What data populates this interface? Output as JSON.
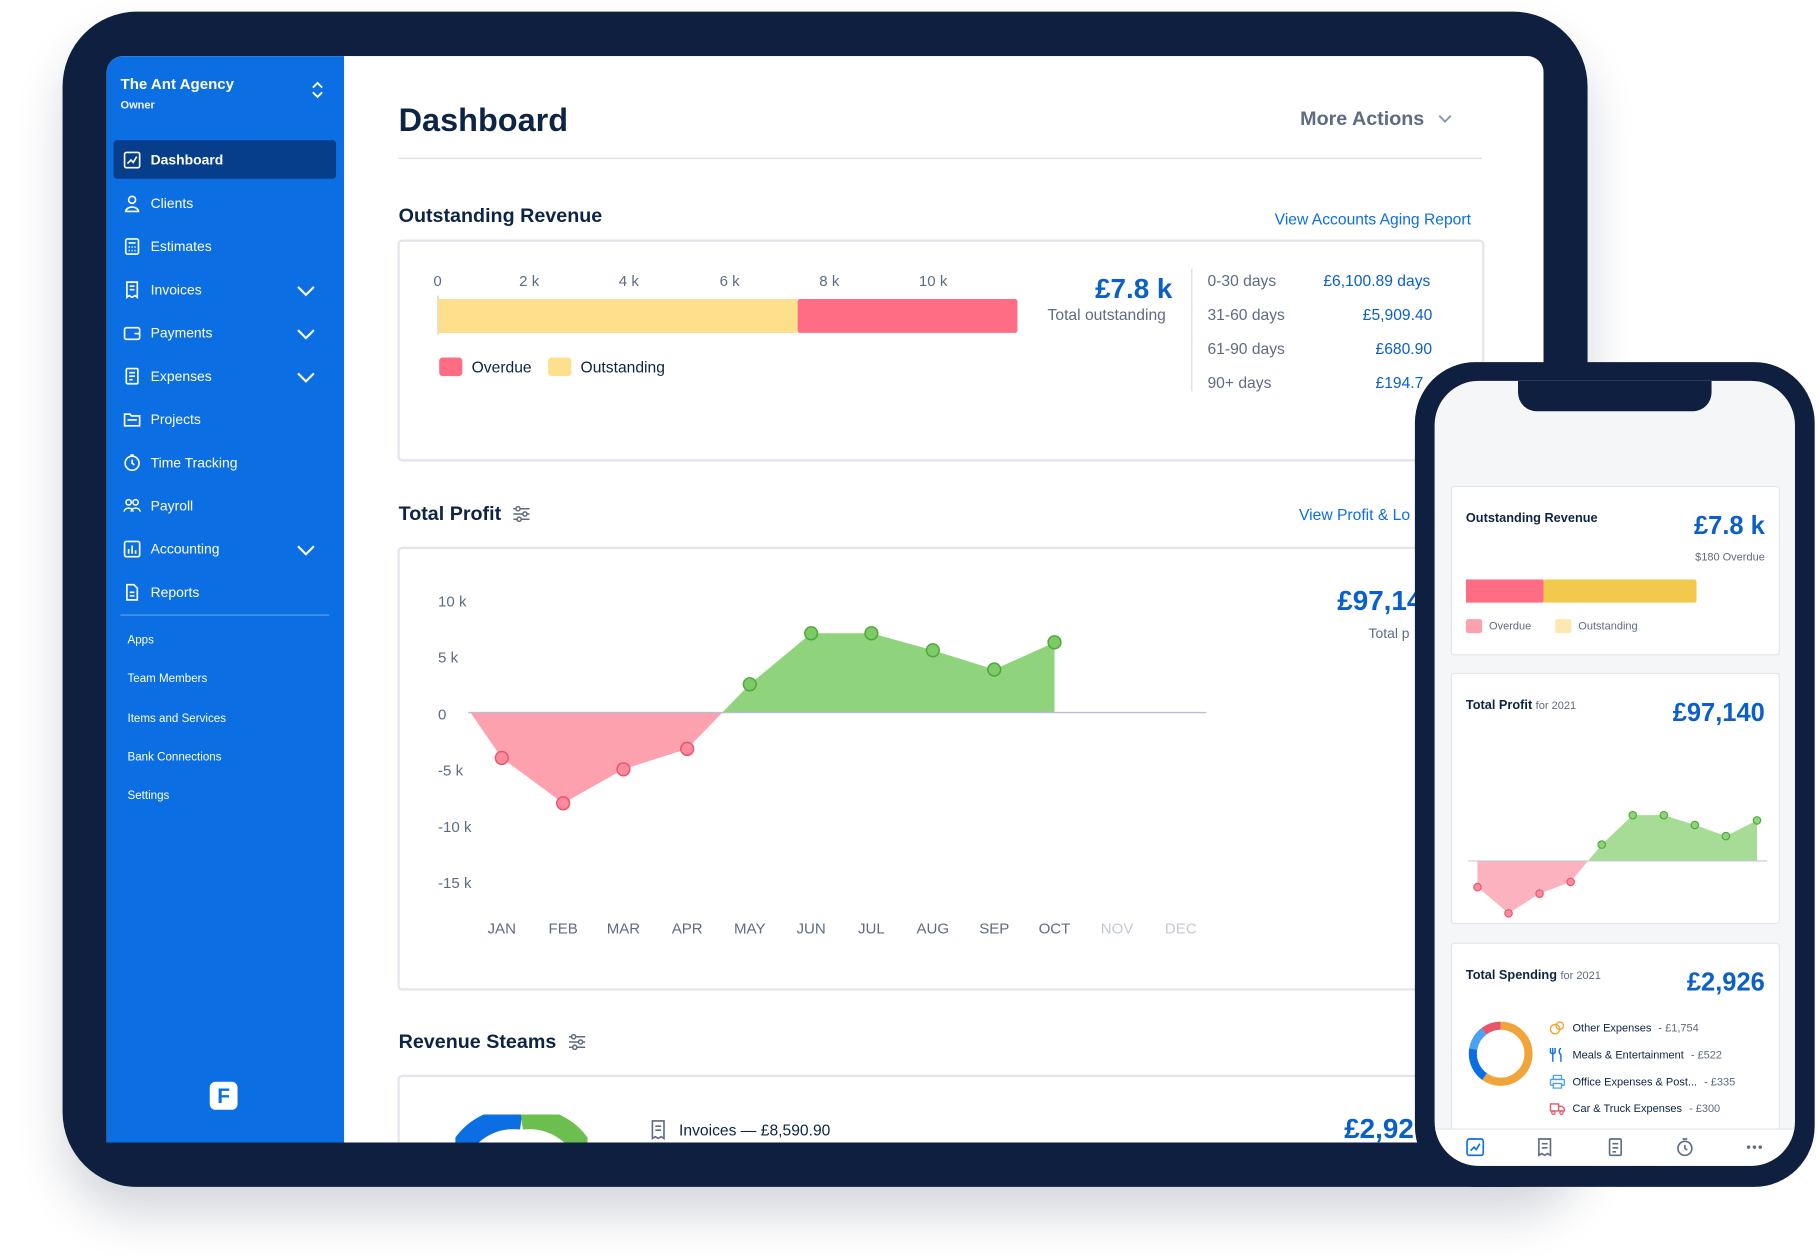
{
  "sidebar": {
    "org_name": "The Ant Agency",
    "org_role": "Owner",
    "items": [
      {
        "label": "Dashboard",
        "icon": "chart-line-icon",
        "active": true
      },
      {
        "label": "Clients",
        "icon": "user-icon"
      },
      {
        "label": "Estimates",
        "icon": "calculator-icon"
      },
      {
        "label": "Invoices",
        "icon": "invoice-icon",
        "expandable": true
      },
      {
        "label": "Payments",
        "icon": "wallet-icon",
        "expandable": true
      },
      {
        "label": "Expenses",
        "icon": "receipt-icon",
        "expandable": true
      },
      {
        "label": "Projects",
        "icon": "folder-icon"
      },
      {
        "label": "Time Tracking",
        "icon": "clock-icon"
      },
      {
        "label": "Payroll",
        "icon": "people-icon"
      },
      {
        "label": "Accounting",
        "icon": "ledger-icon",
        "expandable": true
      },
      {
        "label": "Reports",
        "icon": "document-icon"
      }
    ],
    "sub_items": [
      "Apps",
      "Team Members",
      "Items and Services",
      "Bank Connections",
      "Settings"
    ],
    "logo_letter": "F"
  },
  "header": {
    "title": "Dashboard",
    "more_actions": "More Actions"
  },
  "outstanding": {
    "title": "Outstanding Revenue",
    "link": "View Accounts Aging Report",
    "ticks": [
      "0",
      "2 k",
      "4 k",
      "6 k",
      "8 k",
      "10 k"
    ],
    "legend_overdue": "Overdue",
    "legend_outstanding": "Outstanding",
    "total": "£7.8 k",
    "total_label": "Total outstanding",
    "aging": [
      {
        "range": "0-30 days",
        "amount": "£6,100.89 days"
      },
      {
        "range": "31-60 days",
        "amount": "£5,909.40"
      },
      {
        "range": "61-90 days",
        "amount": "£680.90"
      },
      {
        "range": "90+ days",
        "amount": "£194.7"
      }
    ]
  },
  "profit": {
    "title": "Total Profit",
    "link": "View Profit & Lo",
    "total": "£97,14",
    "total_label": "Total p"
  },
  "revenue_streams": {
    "title": "Revenue Steams",
    "invoices": "Invoices — £8,590.90",
    "total": "£2,92"
  },
  "colors": {
    "brand": "#0b6fe3",
    "overdue": "#fe6d84",
    "outstanding": "#fedf8c",
    "profit_positive": "#8fd37c",
    "profit_negative": "#fea1af",
    "amount_blue": "#0b5fc9"
  },
  "chart_data": [
    {
      "type": "bar",
      "orientation": "horizontal-stacked",
      "title": "Outstanding Revenue",
      "xlim": [
        0,
        11600
      ],
      "ticks": [
        "0",
        "2 k",
        "4 k",
        "6 k",
        "8 k",
        "10 k"
      ],
      "series": [
        {
          "name": "Outstanding",
          "values": [
            7200
          ]
        },
        {
          "name": "Overdue",
          "values": [
            4400
          ]
        }
      ]
    },
    {
      "type": "area",
      "title": "Total Profit",
      "categories": [
        "JAN",
        "FEB",
        "MAR",
        "APR",
        "MAY",
        "JUN",
        "JUL",
        "AUG",
        "SEP",
        "OCT",
        "NOV",
        "DEC"
      ],
      "values": [
        -4000,
        -8000,
        -5000,
        -3200,
        2500,
        7000,
        7000,
        5500,
        3800,
        6200,
        null,
        null
      ],
      "ylim": [
        -15000,
        10000
      ],
      "y_ticks": [
        "10 k",
        "5 k",
        "0",
        "-5 k",
        "-10 k",
        "-15 k"
      ]
    }
  ],
  "phone": {
    "outstanding": {
      "title": "Outstanding Revenue",
      "amount": "£7.8 k",
      "sub": "$180 Overdue",
      "legend_overdue": "Overdue",
      "legend_outstanding": "Outstanding"
    },
    "profit": {
      "title": "Total Profit",
      "period": "for 2021",
      "amount": "£97,140"
    },
    "spending": {
      "title": "Total Spending",
      "period": "for 2021",
      "amount": "£2,926",
      "items": [
        {
          "label": "Other Expenses",
          "amount": "- £1,754",
          "color": "#f2a43a"
        },
        {
          "label": "Meals & Entertainment",
          "amount": "- £522",
          "color": "#0b6fe3"
        },
        {
          "label": "Office Expenses & Post...",
          "amount": "- £335",
          "color": "#4aa3f0"
        },
        {
          "label": "Car & Truck Expenses",
          "amount": "- £300",
          "color": "#e8556d"
        }
      ]
    }
  }
}
